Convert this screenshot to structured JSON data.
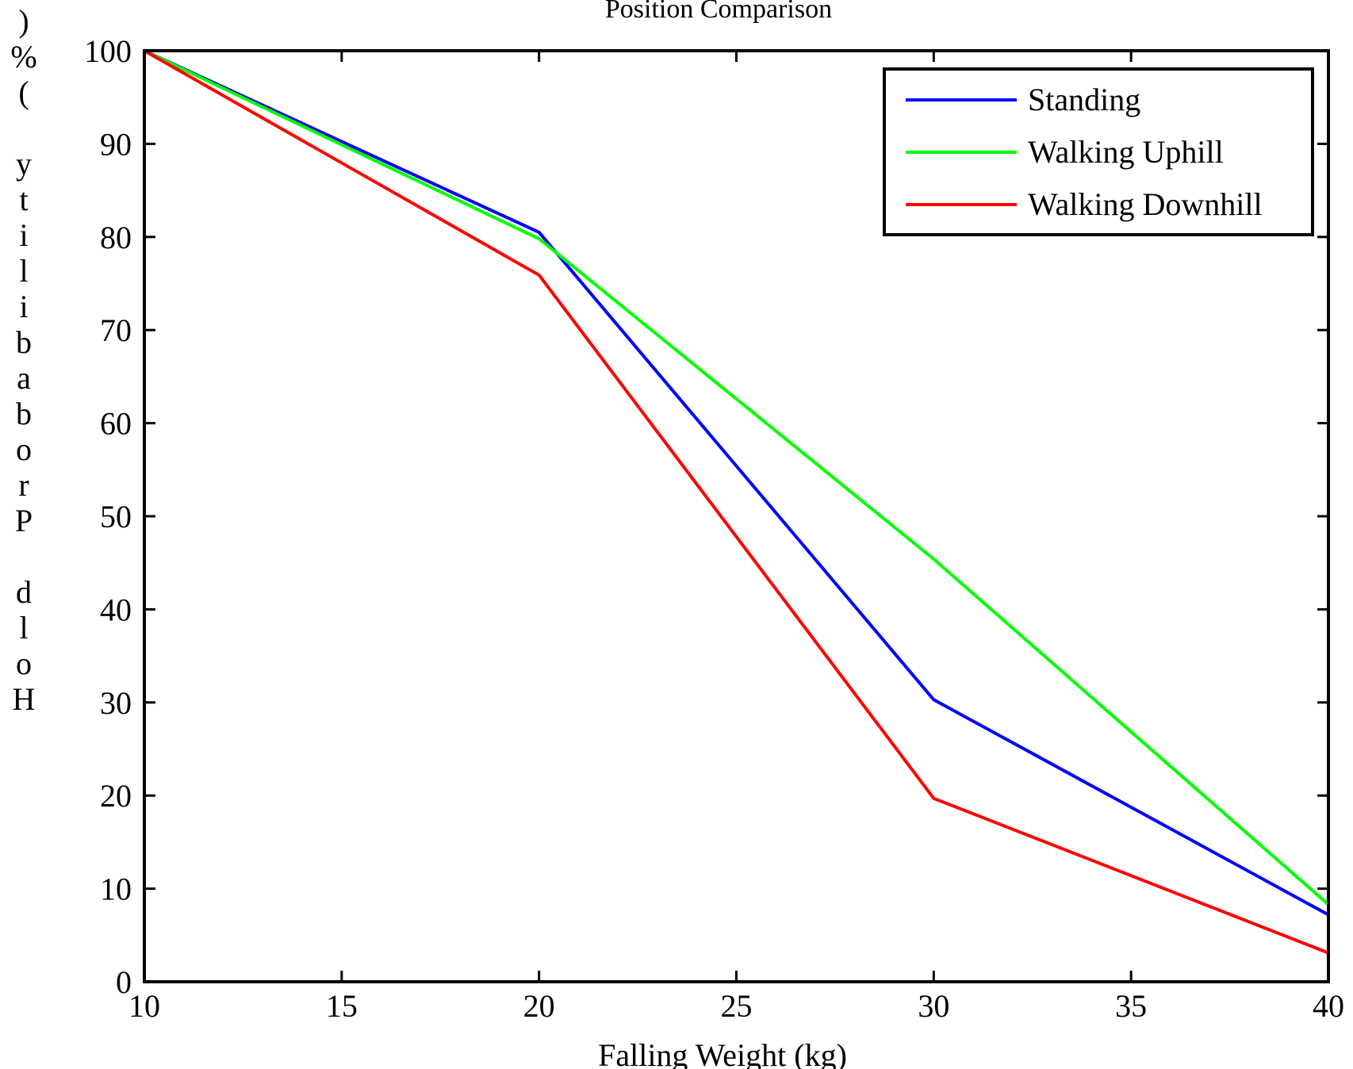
{
  "chart_data": {
    "type": "line",
    "title": "Position Comparison",
    "xlabel": "Falling Weight (kg)",
    "ylabel": "Hold Probability (%)",
    "ylabel_display_chars": [
      ")",
      "%",
      "(",
      "",
      "y",
      "t",
      "i",
      "l",
      "i",
      "b",
      "a",
      "b",
      "o",
      "r",
      "P",
      "",
      "d",
      "l",
      "o",
      "H"
    ],
    "xlim": [
      10,
      40
    ],
    "ylim": [
      0,
      100
    ],
    "xticks": [
      10,
      15,
      20,
      25,
      30,
      35,
      40
    ],
    "yticks": [
      0,
      10,
      20,
      30,
      40,
      50,
      60,
      70,
      80,
      90,
      100
    ],
    "x": [
      10,
      20,
      30,
      40
    ],
    "series": [
      {
        "name": "Standing",
        "color": "#0000ff",
        "values": [
          100,
          80.5,
          30.3,
          7.2
        ]
      },
      {
        "name": "Walking Uphill",
        "color": "#00ff00",
        "values": [
          100,
          79.8,
          45.4,
          8.3
        ]
      },
      {
        "name": "Walking Downhill",
        "color": "#ff0000",
        "values": [
          100,
          75.9,
          19.7,
          3.1
        ]
      }
    ],
    "legend_position": "top-right",
    "grid": false
  }
}
